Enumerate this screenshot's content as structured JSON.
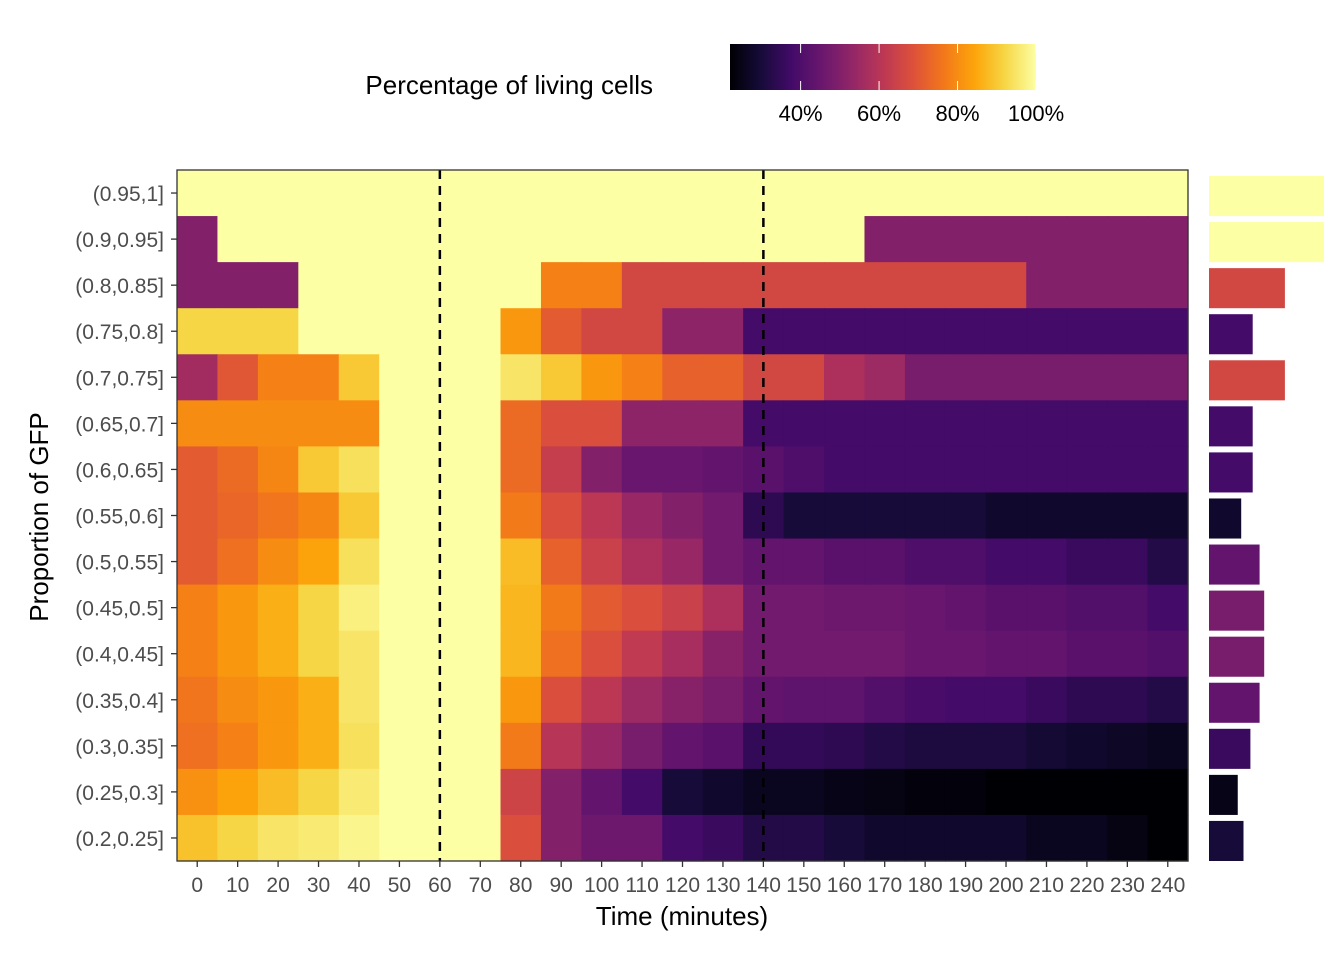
{
  "chart_data": {
    "type": "heatmap",
    "legend": {
      "title": "Percentage of living cells",
      "ticks": [
        "40%",
        "60%",
        "80%",
        "100%"
      ],
      "tick_values": [
        40,
        60,
        80,
        100
      ],
      "range": [
        22,
        100
      ],
      "colormap": "inferno",
      "placement": "top"
    },
    "xlabel": "Time (minutes)",
    "ylabel": "Proportion of GFP",
    "x": [
      0,
      10,
      20,
      30,
      40,
      50,
      60,
      70,
      80,
      90,
      100,
      110,
      120,
      130,
      140,
      150,
      160,
      170,
      180,
      190,
      200,
      210,
      220,
      230,
      240
    ],
    "x_tick_labels": [
      "0",
      "10",
      "20",
      "30",
      "40",
      "50",
      "60",
      "70",
      "80",
      "90",
      "100",
      "110",
      "120",
      "130",
      "140",
      "150",
      "160",
      "170",
      "180",
      "190",
      "200",
      "210",
      "220",
      "230",
      "240"
    ],
    "y_categories": [
      "(0.95,1]",
      "(0.9,0.95]",
      "(0.8,0.85]",
      "(0.75,0.8]",
      "(0.7,0.75]",
      "(0.65,0.7]",
      "(0.6,0.65]",
      "(0.55,0.6]",
      "(0.5,0.55]",
      "(0.45,0.5]",
      "(0.4,0.45]",
      "(0.35,0.4]",
      "(0.3,0.35]",
      "(0.25,0.3]",
      "(0.2,0.25]"
    ],
    "vlines": [
      60,
      140
    ],
    "vline_style": "dashed",
    "grid": false,
    "values": [
      [
        100,
        100,
        100,
        100,
        100,
        100,
        100,
        100,
        100,
        100,
        100,
        100,
        100,
        100,
        100,
        100,
        100,
        100,
        100,
        100,
        100,
        100,
        100,
        100,
        100
      ],
      [
        50,
        100,
        100,
        100,
        100,
        100,
        100,
        100,
        100,
        100,
        100,
        100,
        100,
        100,
        100,
        100,
        100,
        50,
        50,
        50,
        50,
        50,
        50,
        50,
        50
      ],
      [
        50,
        50,
        50,
        100,
        100,
        100,
        100,
        100,
        100,
        78,
        78,
        66,
        66,
        66,
        66,
        66,
        66,
        66,
        66,
        66,
        66,
        50,
        50,
        50,
        50
      ],
      [
        92,
        92,
        92,
        100,
        100,
        100,
        100,
        100,
        82,
        71,
        66,
        66,
        52,
        52,
        38,
        38,
        38,
        38,
        38,
        38,
        38,
        38,
        38,
        38,
        38
      ],
      [
        56,
        70,
        78,
        78,
        90,
        100,
        100,
        100,
        95,
        90,
        82,
        78,
        72,
        72,
        66,
        66,
        58,
        55,
        48,
        48,
        48,
        48,
        48,
        48,
        48
      ],
      [
        80,
        80,
        80,
        80,
        80,
        100,
        100,
        100,
        74,
        68,
        68,
        52,
        52,
        52,
        38,
        38,
        38,
        38,
        38,
        38,
        38,
        38,
        38,
        38,
        38
      ],
      [
        71,
        74,
        79,
        90,
        94,
        100,
        100,
        100,
        74,
        63,
        50,
        45,
        45,
        44,
        42,
        40,
        38,
        38,
        38,
        38,
        38,
        38,
        38,
        38,
        38
      ],
      [
        71,
        73,
        76,
        79,
        90,
        100,
        100,
        100,
        77,
        68,
        61,
        54,
        50,
        47,
        34,
        30,
        30,
        30,
        30,
        30,
        28,
        28,
        28,
        28,
        28
      ],
      [
        71,
        75,
        80,
        84,
        94,
        100,
        100,
        100,
        88,
        72,
        64,
        58,
        54,
        47,
        44,
        44,
        42,
        42,
        40,
        40,
        38,
        38,
        36,
        36,
        32
      ],
      [
        78,
        82,
        86,
        92,
        97,
        100,
        100,
        100,
        87,
        77,
        71,
        68,
        64,
        58,
        47,
        47,
        46,
        46,
        45,
        44,
        42,
        42,
        41,
        41,
        38
      ],
      [
        78,
        82,
        86,
        92,
        95,
        100,
        100,
        100,
        87,
        75,
        68,
        62,
        57,
        51,
        47,
        47,
        47,
        47,
        45,
        45,
        44,
        44,
        42,
        42,
        41
      ],
      [
        76,
        80,
        82,
        86,
        95,
        100,
        100,
        100,
        82,
        68,
        61,
        55,
        51,
        48,
        44,
        43,
        43,
        41,
        39,
        38,
        38,
        36,
        34,
        34,
        32
      ],
      [
        75,
        78,
        82,
        86,
        94,
        100,
        100,
        100,
        77,
        60,
        54,
        48,
        44,
        42,
        35,
        35,
        34,
        32,
        31,
        31,
        31,
        29,
        28,
        27,
        26
      ],
      [
        81,
        84,
        88,
        92,
        96,
        100,
        100,
        100,
        65,
        50,
        44,
        38,
        30,
        28,
        26,
        26,
        25,
        24,
        23,
        23,
        22,
        22,
        20,
        20,
        18
      ],
      [
        89,
        92,
        95,
        96,
        98,
        100,
        100,
        100,
        68,
        50,
        46,
        46,
        38,
        36,
        32,
        32,
        30,
        28,
        28,
        28,
        28,
        26,
        26,
        24,
        22
      ]
    ],
    "marginal": {
      "values": [
        100,
        100,
        66,
        38,
        66,
        38,
        38,
        28,
        44,
        48,
        48,
        44,
        36,
        25,
        30
      ],
      "max": 100
    }
  }
}
